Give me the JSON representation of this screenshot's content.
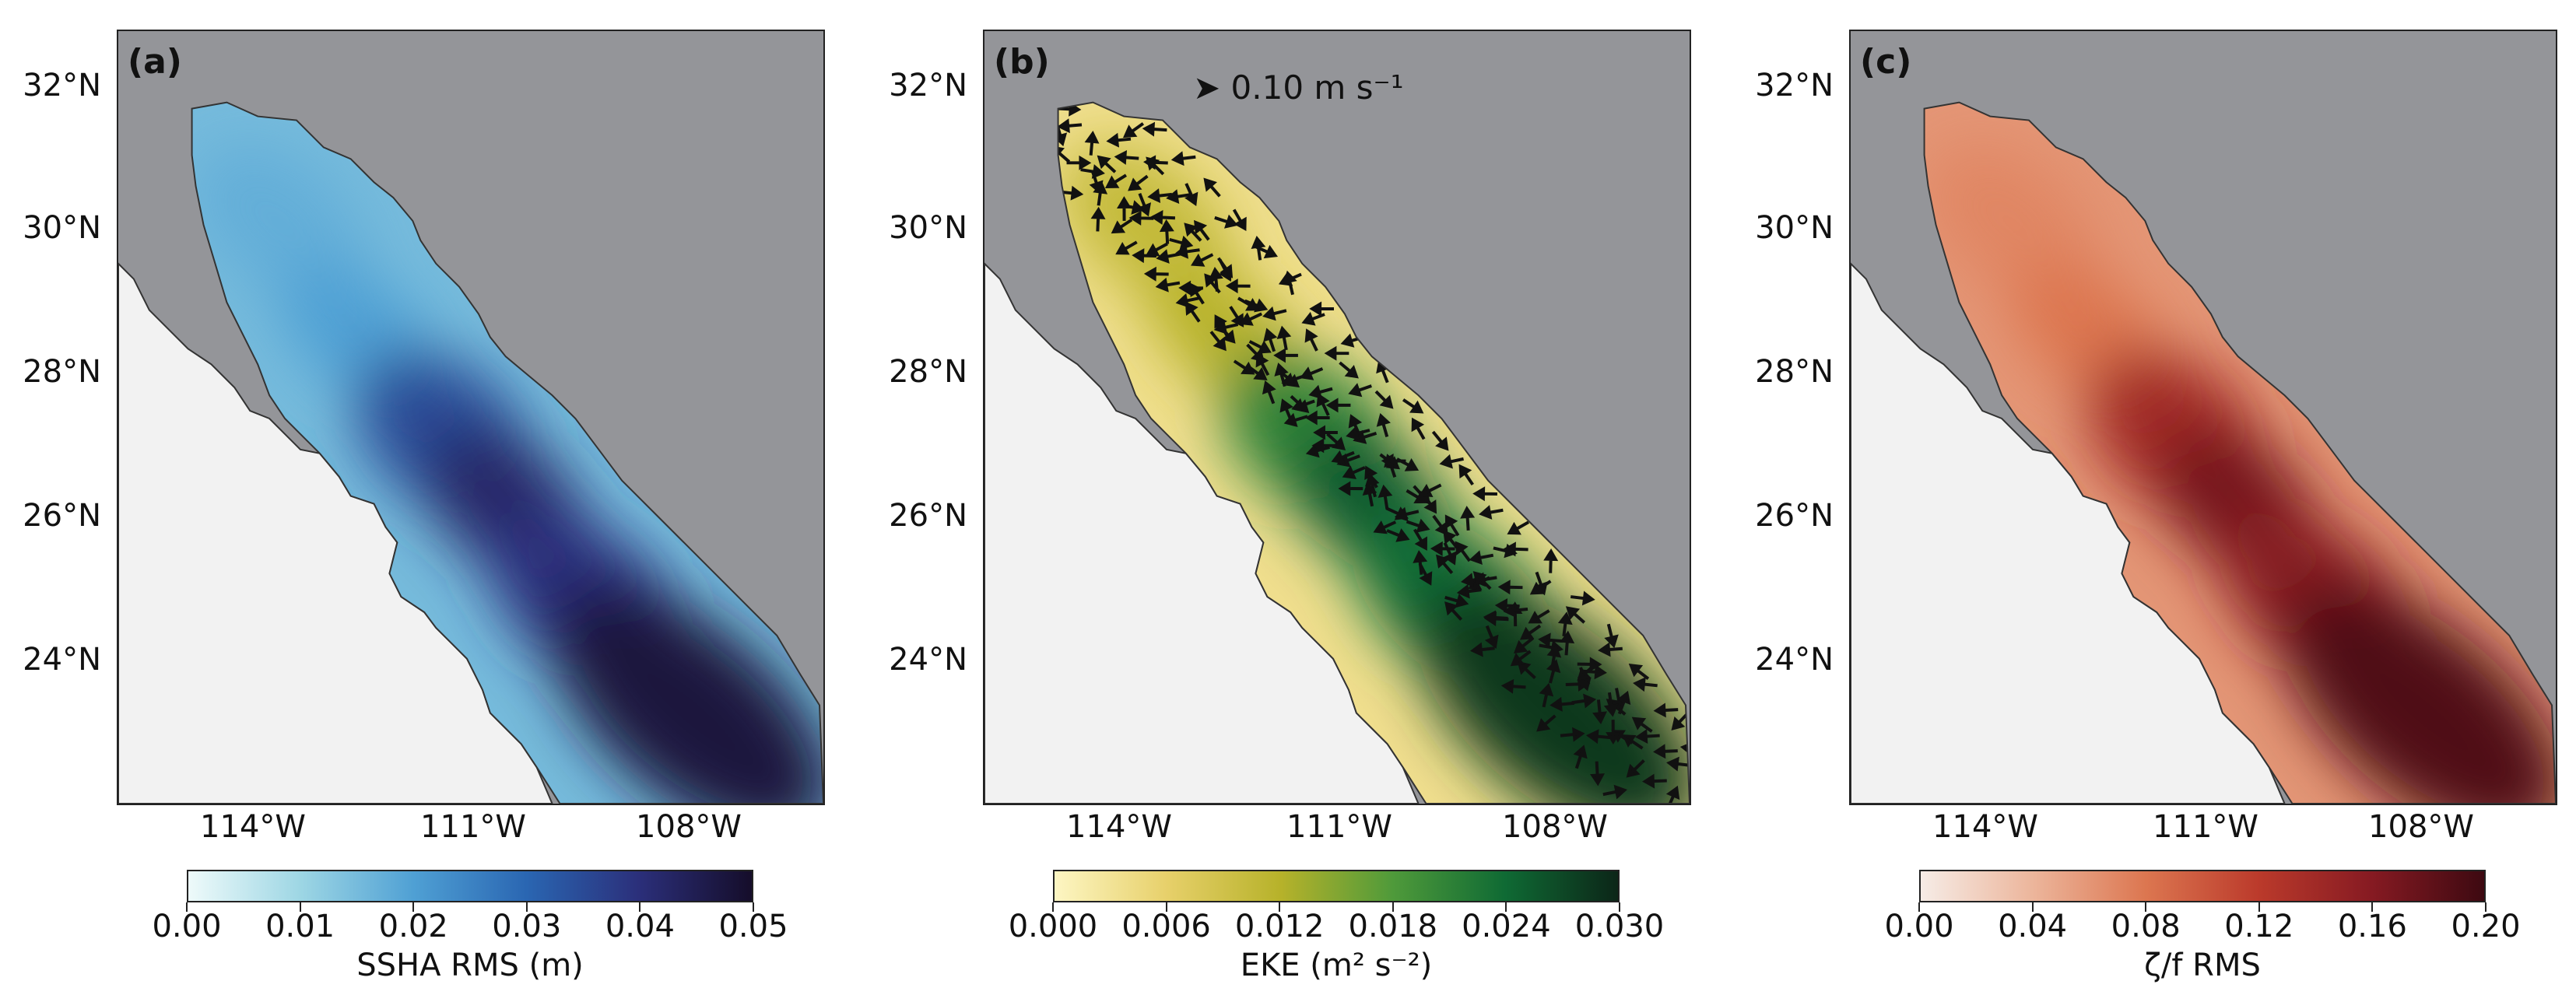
{
  "colors": {
    "land": "#f2f2f2",
    "mask": "#949599",
    "coast": "#333333"
  },
  "axes": {
    "lat_ticks": [
      "32°N",
      "30°N",
      "28°N",
      "26°N",
      "24°N"
    ],
    "lon_ticks": [
      "114°W",
      "111°W",
      "108°W"
    ]
  },
  "panels": [
    {
      "label": "(a)",
      "variable": "SSHA RMS",
      "colormap": [
        "#eefafa",
        "#9dd6e4",
        "#4fa0d4",
        "#2a66b2",
        "#2b2f7a",
        "#150d2a"
      ],
      "colorbar": {
        "ticks": [
          "0.00",
          "0.01",
          "0.02",
          "0.03",
          "0.04",
          "0.05"
        ],
        "title": "SSHA RMS (m)"
      }
    },
    {
      "label": "(b)",
      "variable": "EKE",
      "colormap": [
        "#fdf6c3",
        "#e7d06a",
        "#b7b22a",
        "#4f9a3a",
        "#0f6a34",
        "#0c2618"
      ],
      "colorbar": {
        "ticks": [
          "0.000",
          "0.006",
          "0.012",
          "0.018",
          "0.024",
          "0.030"
        ],
        "title": "EKE (m² s⁻²)"
      },
      "reference_arrow": "0.10 m s⁻¹"
    },
    {
      "label": "(c)",
      "variable": "ζ/f RMS",
      "colormap": [
        "#f6ece6",
        "#ecb59b",
        "#dc7650",
        "#bb3a2b",
        "#861a22",
        "#3d0911"
      ],
      "colorbar": {
        "ticks": [
          "0.00",
          "0.04",
          "0.08",
          "0.12",
          "0.16",
          "0.20"
        ],
        "title": "ζ/f RMS"
      }
    }
  ]
}
